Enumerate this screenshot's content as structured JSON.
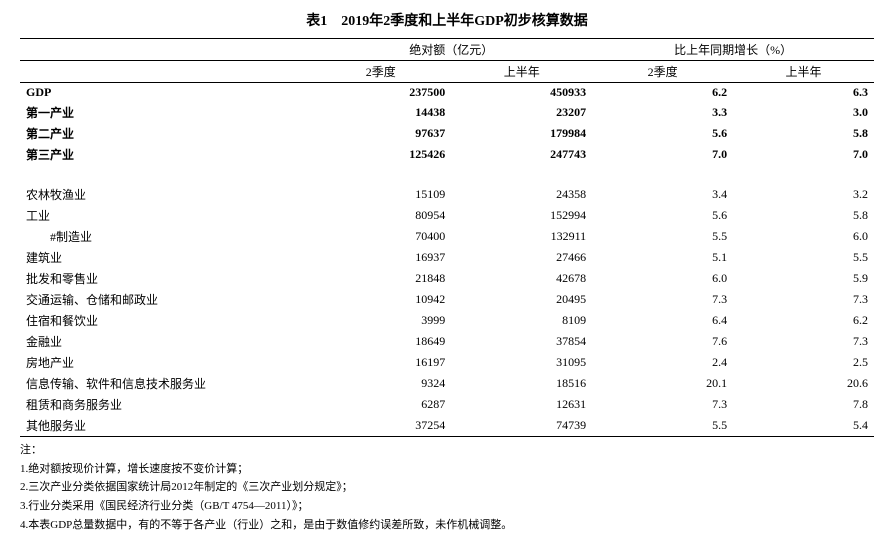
{
  "title": "表1　2019年2季度和上半年GDP初步核算数据",
  "header": {
    "group1": "绝对额（亿元）",
    "group2": "比上年同期增长（%）",
    "q2": "2季度",
    "h1": "上半年"
  },
  "rows": [
    {
      "label": "GDP",
      "q2_abs": "237500",
      "h1_abs": "450933",
      "q2_g": "6.2",
      "h1_g": "6.3",
      "bold": true
    },
    {
      "label": "第一产业",
      "q2_abs": "14438",
      "h1_abs": "23207",
      "q2_g": "3.3",
      "h1_g": "3.0",
      "bold": true
    },
    {
      "label": "第二产业",
      "q2_abs": "97637",
      "h1_abs": "179984",
      "q2_g": "5.6",
      "h1_g": "5.8",
      "bold": true
    },
    {
      "label": "第三产业",
      "q2_abs": "125426",
      "h1_abs": "247743",
      "q2_g": "7.0",
      "h1_g": "7.0",
      "bold": true,
      "gap_after": true
    },
    {
      "label": "农林牧渔业",
      "q2_abs": "15109",
      "h1_abs": "24358",
      "q2_g": "3.4",
      "h1_g": "3.2"
    },
    {
      "label": "工业",
      "q2_abs": "80954",
      "h1_abs": "152994",
      "q2_g": "5.6",
      "h1_g": "5.8"
    },
    {
      "label": "#制造业",
      "q2_abs": "70400",
      "h1_abs": "132911",
      "q2_g": "5.5",
      "h1_g": "6.0",
      "indent": true
    },
    {
      "label": "建筑业",
      "q2_abs": "16937",
      "h1_abs": "27466",
      "q2_g": "5.1",
      "h1_g": "5.5"
    },
    {
      "label": "批发和零售业",
      "q2_abs": "21848",
      "h1_abs": "42678",
      "q2_g": "6.0",
      "h1_g": "5.9"
    },
    {
      "label": "交通运输、仓储和邮政业",
      "q2_abs": "10942",
      "h1_abs": "20495",
      "q2_g": "7.3",
      "h1_g": "7.3"
    },
    {
      "label": "住宿和餐饮业",
      "q2_abs": "3999",
      "h1_abs": "8109",
      "q2_g": "6.4",
      "h1_g": "6.2"
    },
    {
      "label": "金融业",
      "q2_abs": "18649",
      "h1_abs": "37854",
      "q2_g": "7.6",
      "h1_g": "7.3"
    },
    {
      "label": "房地产业",
      "q2_abs": "16197",
      "h1_abs": "31095",
      "q2_g": "2.4",
      "h1_g": "2.5"
    },
    {
      "label": "信息传输、软件和信息技术服务业",
      "q2_abs": "9324",
      "h1_abs": "18516",
      "q2_g": "20.1",
      "h1_g": "20.6"
    },
    {
      "label": "租赁和商务服务业",
      "q2_abs": "6287",
      "h1_abs": "12631",
      "q2_g": "7.3",
      "h1_g": "7.8"
    },
    {
      "label": "其他服务业",
      "q2_abs": "37254",
      "h1_abs": "74739",
      "q2_g": "5.5",
      "h1_g": "5.4"
    }
  ],
  "notes": {
    "head": "注：",
    "n1": "1.绝对额按现价计算，增长速度按不变价计算；",
    "n2": "2.三次产业分类依据国家统计局2012年制定的《三次产业划分规定》；",
    "n3": "3.行业分类采用《国民经济行业分类（GB/T 4754—2011）》；",
    "n4": "4.本表GDP总量数据中，有的不等于各产业（行业）之和，是由于数值修约误差所致，未作机械调整。"
  }
}
